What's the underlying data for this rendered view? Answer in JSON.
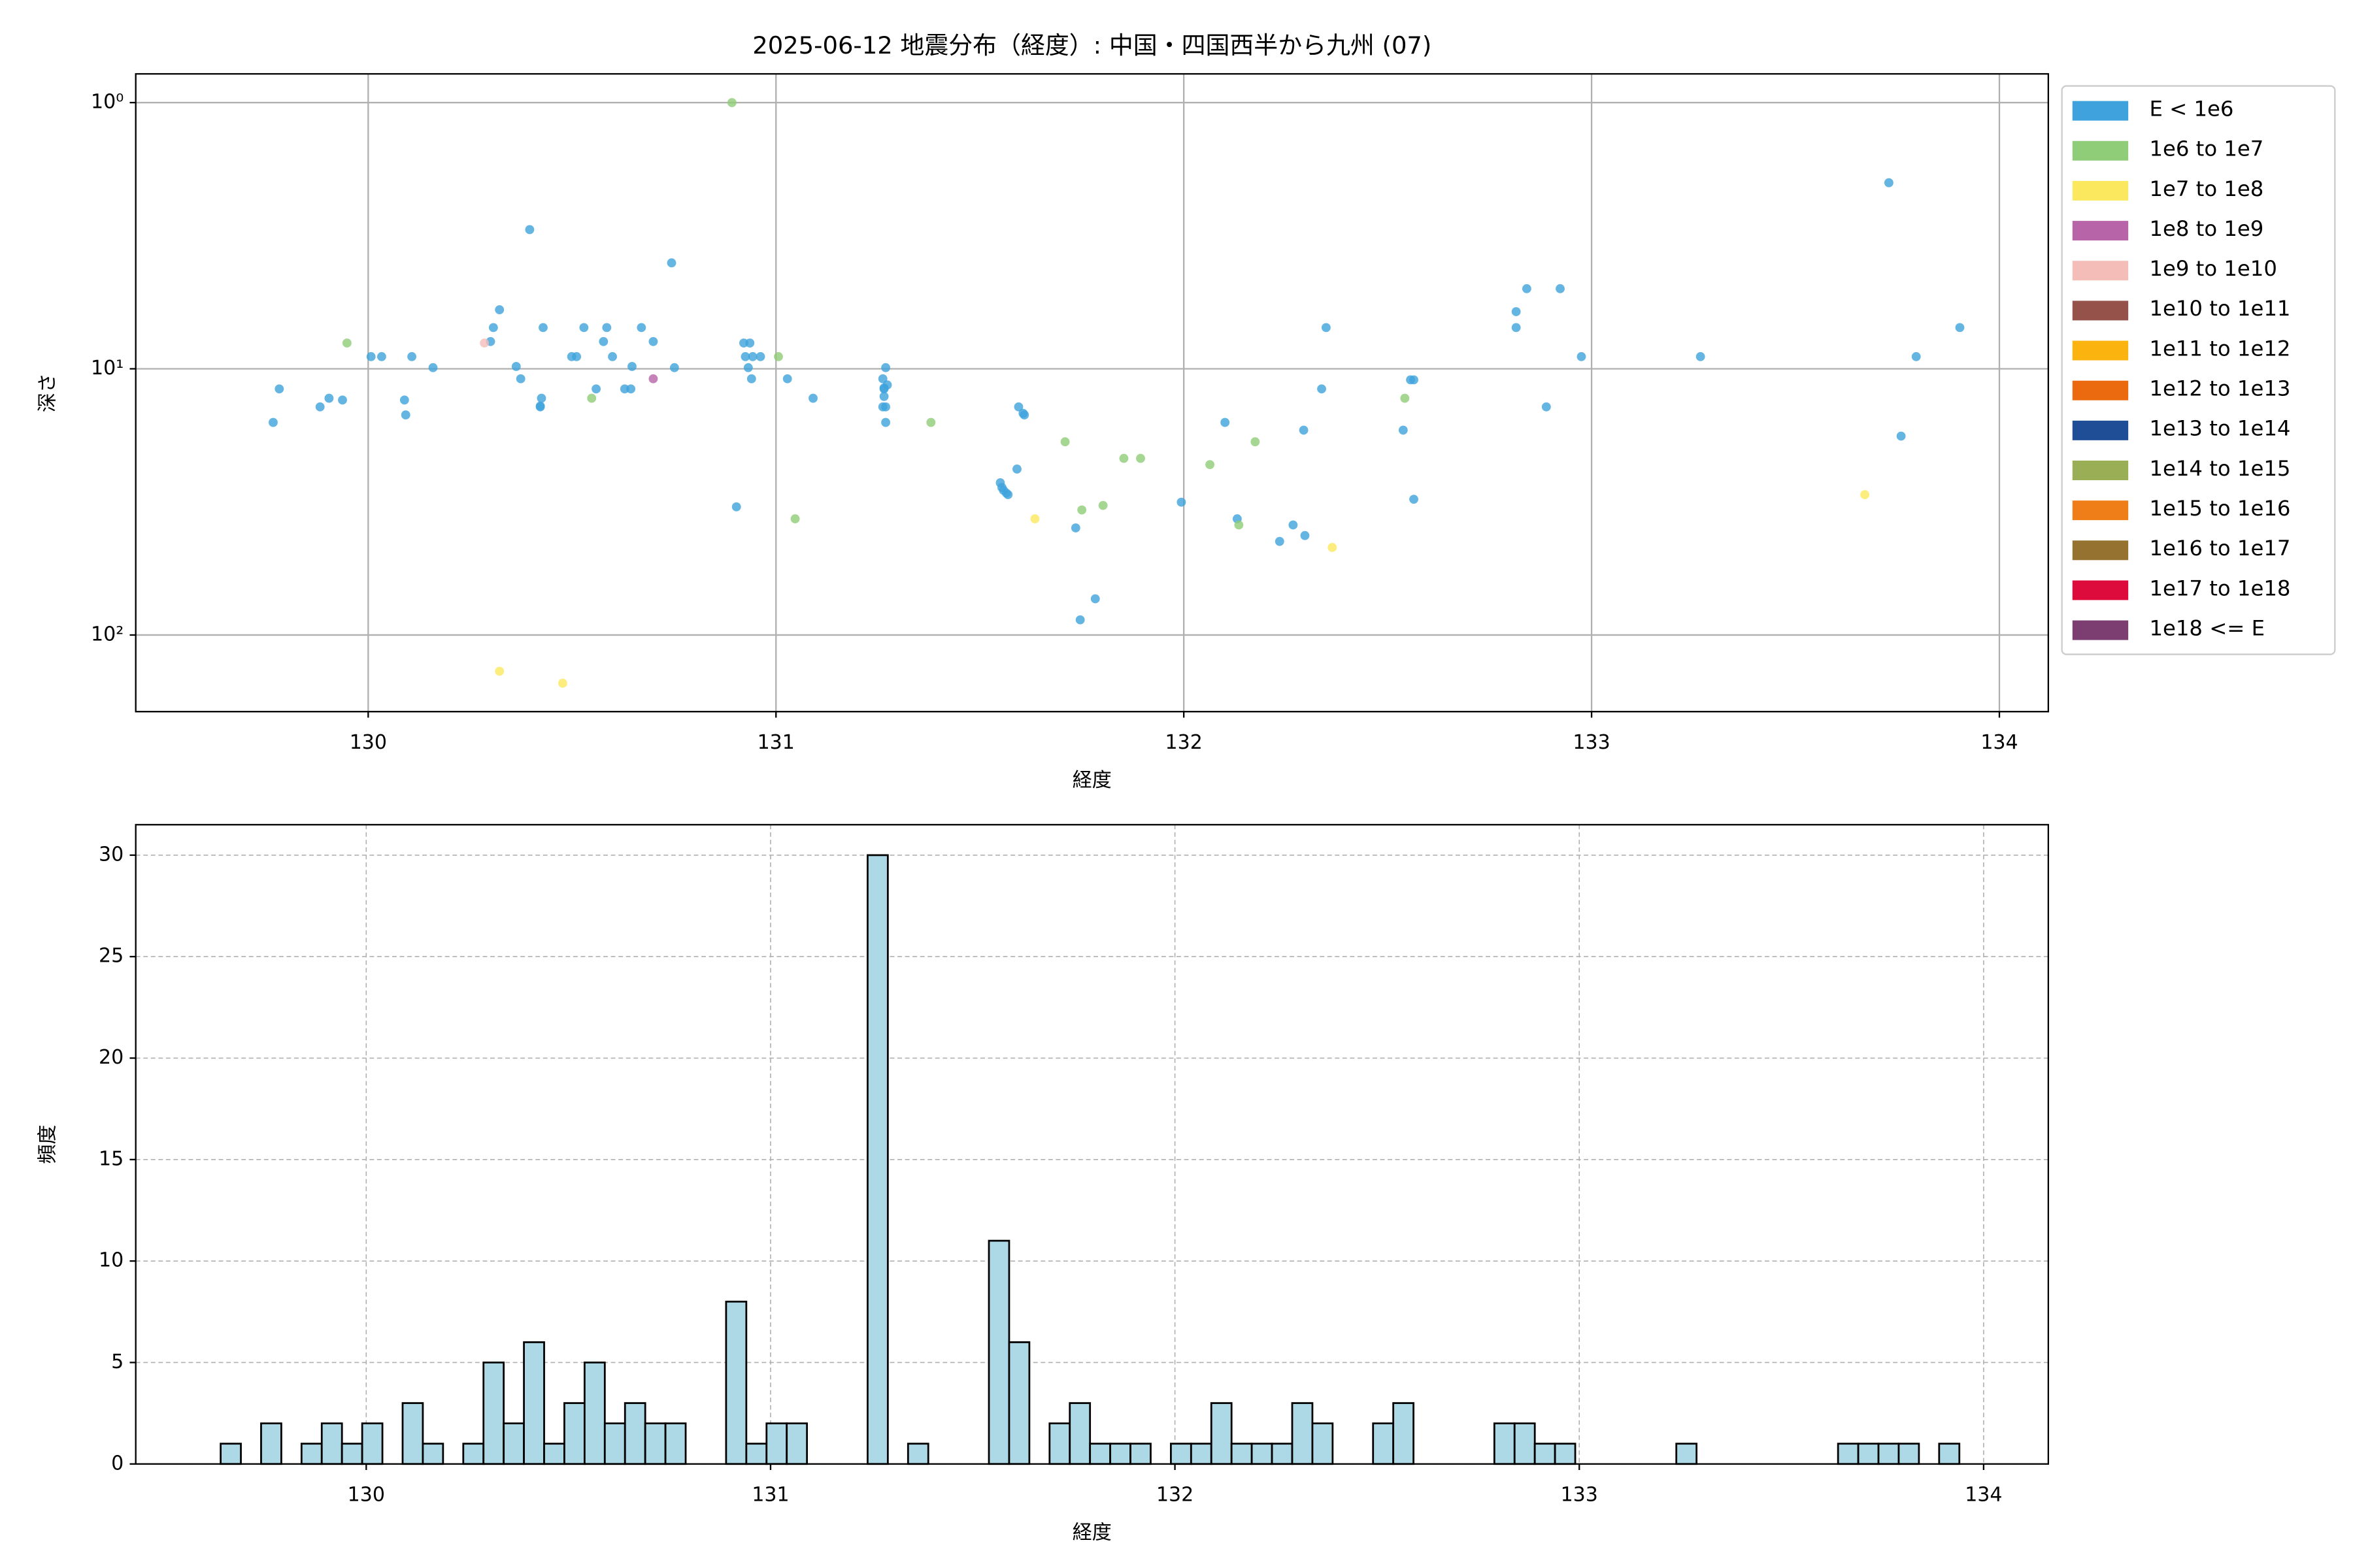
{
  "chart_data": [
    {
      "type": "scatter",
      "title": "2025-06-12 地震分布（経度）: 中国・四国西半から九州 (07)",
      "xlabel": "経度",
      "ylabel": "深さ",
      "xlim": [
        129.43,
        134.12
      ],
      "ylim": [
        0.78,
        194
      ],
      "log_y": true,
      "y_inverted": true,
      "xticks": [
        130,
        131,
        132,
        133,
        134
      ],
      "yticks": [
        {
          "value": 1,
          "label": "10⁰"
        },
        {
          "value": 10,
          "label": "10¹"
        },
        {
          "value": 100,
          "label": "10²"
        }
      ],
      "grid": "solid",
      "legend": "outside-right",
      "series": [
        {
          "name": "E < 1e6",
          "color": "#3fa2dc",
          "x": [
            129.767,
            129.782,
            129.882,
            129.904,
            129.937,
            130.007,
            130.033,
            130.089,
            130.092,
            130.107,
            130.159,
            130.3,
            130.307,
            130.322,
            130.363,
            130.374,
            130.396,
            130.422,
            130.422,
            130.425,
            130.429,
            130.499,
            130.511,
            130.529,
            130.559,
            130.577,
            130.585,
            130.599,
            130.629,
            130.644,
            130.647,
            130.67,
            130.699,
            130.744,
            130.751,
            130.903,
            130.921,
            130.936,
            130.925,
            130.943,
            130.932,
            130.94,
            130.962,
            131.028,
            131.091,
            131.262,
            131.265,
            131.265,
            131.269,
            131.262,
            131.265,
            131.269,
            131.269,
            131.273,
            131.55,
            131.554,
            131.558,
            131.565,
            131.569,
            131.591,
            131.595,
            131.606,
            131.609,
            131.735,
            131.746,
            131.783,
            131.994,
            132.101,
            132.131,
            132.235,
            132.268,
            132.294,
            132.297,
            132.338,
            132.349,
            132.538,
            132.556,
            132.564,
            132.564,
            132.815,
            132.815,
            132.841,
            132.889,
            132.923,
            132.975,
            133.267,
            133.729,
            133.759,
            133.796,
            133.903
          ],
          "values": [
            15.9,
            11.9,
            13.9,
            12.9,
            13.1,
            9.0,
            9.0,
            13.1,
            14.9,
            9.0,
            9.9,
            7.9,
            7.0,
            6.0,
            9.8,
            10.9,
            3.0,
            13.8,
            13.9,
            12.9,
            7.0,
            9.0,
            9.0,
            7.0,
            11.9,
            7.9,
            7.0,
            9.0,
            11.9,
            11.9,
            9.8,
            7.0,
            7.9,
            4.0,
            9.9,
            33.0,
            8.0,
            8.0,
            9.0,
            9.0,
            9.9,
            10.9,
            9.0,
            10.9,
            12.9,
            10.9,
            11.8,
            12.7,
            13.9,
            13.9,
            11.9,
            9.9,
            15.9,
            11.5,
            26.8,
            27.9,
            28.6,
            29.3,
            29.7,
            23.8,
            13.9,
            14.7,
            14.9,
            39.6,
            87.7,
            73.1,
            31.7,
            15.9,
            36.6,
            44.5,
            38.6,
            17.0,
            42.3,
            11.9,
            7.0,
            17.0,
            11.0,
            11.0,
            30.9,
            6.1,
            7.0,
            5.0,
            13.9,
            5.0,
            9.0,
            9.0,
            2.0,
            17.9,
            9.0,
            7.0
          ]
        },
        {
          "name": "1e6 to 1e7",
          "color": "#8fcd78",
          "x": [
            129.948,
            130.548,
            130.892,
            131.006,
            131.047,
            131.38,
            131.709,
            131.75,
            131.802,
            131.853,
            131.894,
            132.064,
            132.135,
            132.175,
            132.542
          ],
          "values": [
            8.0,
            12.9,
            1.0,
            9.0,
            36.6,
            15.9,
            18.8,
            33.9,
            32.6,
            21.7,
            21.7,
            22.9,
            38.6,
            18.8,
            12.9
          ]
        },
        {
          "name": "1e7 to 1e8",
          "color": "#fbe85e",
          "x": [
            130.322,
            130.477,
            131.635,
            132.364,
            133.67
          ],
          "values": [
            136.8,
            151.7,
            36.6,
            46.9,
            29.7
          ]
        },
        {
          "name": "1e8 to 1e9",
          "color": "#b864a8",
          "x": [
            130.699
          ],
          "values": [
            10.9
          ]
        },
        {
          "name": "1e9 to 1e10",
          "color": "#f4bdb8",
          "x": [
            130.285
          ],
          "values": [
            8.0
          ]
        },
        {
          "name": "1e10 to 1e11",
          "color": "#94524a",
          "x": [],
          "values": []
        },
        {
          "name": "1e11 to 1e12",
          "color": "#fbb40f",
          "x": [],
          "values": []
        },
        {
          "name": "1e12 to 1e13",
          "color": "#ec6a0f",
          "x": [],
          "values": []
        },
        {
          "name": "1e13 to 1e14",
          "color": "#1f4e96",
          "x": [],
          "values": []
        },
        {
          "name": "1e14 to 1e15",
          "color": "#9aae56",
          "x": [],
          "values": []
        },
        {
          "name": "1e15 to 1e16",
          "color": "#f07e18",
          "x": [],
          "values": []
        },
        {
          "name": "1e16 to 1e17",
          "color": "#957230",
          "x": [],
          "values": []
        },
        {
          "name": "1e17 to 1e18",
          "color": "#dd0a3c",
          "x": [],
          "values": []
        },
        {
          "name": "1e18 <= E",
          "color": "#7c3e70",
          "x": [],
          "values": []
        }
      ]
    },
    {
      "type": "histogram",
      "xlabel": "経度",
      "ylabel": "頻度",
      "xlim": [
        129.43,
        134.16
      ],
      "ylim": [
        0,
        31.5
      ],
      "xticks": [
        130,
        131,
        132,
        133,
        134
      ],
      "yticks": [
        0,
        5,
        10,
        15,
        20,
        25,
        30
      ],
      "grid": "dashed",
      "color": "#add8e6",
      "edgecolor": "#000000",
      "bins": [
        129.64,
        129.69,
        129.74,
        129.79,
        129.84,
        129.89,
        129.94,
        129.99,
        130.04,
        130.09,
        130.14,
        130.19,
        130.24,
        130.29,
        130.34,
        130.39,
        130.44,
        130.49,
        130.54,
        130.59,
        130.64,
        130.69,
        130.74,
        130.79,
        130.84,
        130.89,
        130.94,
        130.99,
        131.04,
        131.09,
        131.14,
        131.19,
        131.24,
        131.29,
        131.34,
        131.39,
        131.44,
        131.49,
        131.54,
        131.59,
        131.64,
        131.69,
        131.74,
        131.79,
        131.84,
        131.89,
        131.94,
        131.99,
        132.04,
        132.09,
        132.14,
        132.19,
        132.24,
        132.29,
        132.34,
        132.39,
        132.44,
        132.49,
        132.54,
        132.59,
        132.64,
        132.69,
        132.74,
        132.79,
        132.84,
        132.89,
        132.94,
        132.99,
        133.04,
        133.09,
        133.14,
        133.19,
        133.24,
        133.29,
        133.34,
        133.39,
        133.44,
        133.49,
        133.54,
        133.59,
        133.64,
        133.69,
        133.74,
        133.79,
        133.84,
        133.89,
        133.94
      ],
      "values": [
        1,
        0,
        2,
        0,
        1,
        2,
        1,
        2,
        0,
        3,
        1,
        0,
        1,
        5,
        2,
        6,
        1,
        3,
        5,
        2,
        3,
        2,
        2,
        0,
        0,
        8,
        1,
        2,
        2,
        0,
        0,
        0,
        30,
        0,
        1,
        0,
        0,
        0,
        11,
        6,
        0,
        2,
        3,
        1,
        1,
        1,
        0,
        1,
        1,
        3,
        1,
        1,
        1,
        3,
        2,
        0,
        0,
        2,
        3,
        0,
        0,
        0,
        0,
        2,
        2,
        1,
        1,
        0,
        0,
        0,
        0,
        0,
        1,
        0,
        0,
        0,
        0,
        0,
        0,
        0,
        1,
        1,
        1,
        1,
        0,
        1
      ]
    }
  ]
}
